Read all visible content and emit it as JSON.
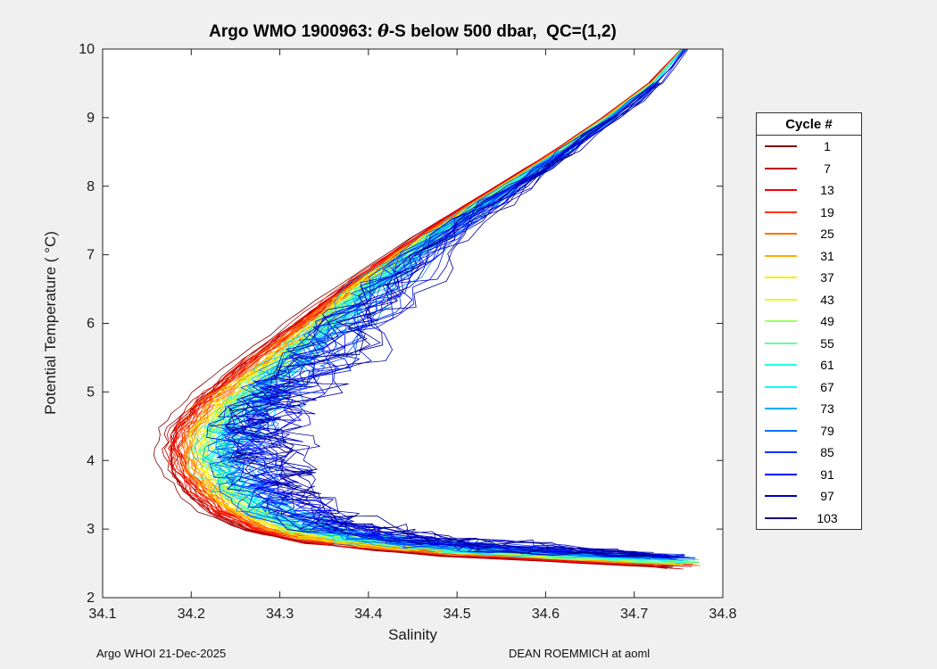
{
  "figure": {
    "background": "#f0f0f0",
    "plot_background": "#ffffff",
    "axes_color": "#222222",
    "footer_left": "Argo WHOI 21-Dec-2025",
    "footer_right": "DEAN ROEMMICH at aoml"
  },
  "chart_data": {
    "type": "line",
    "title": {
      "prefix": "Argo WMO 1900963: ",
      "theta": "θ",
      "suffix": "-S below 500 dbar,  QC=(1,2)"
    },
    "xlabel": "Salinity",
    "ylabel": "Potential Temperature ( °C)",
    "xlim": [
      34.1,
      34.8
    ],
    "ylim": [
      2,
      10
    ],
    "xticks": [
      34.1,
      34.2,
      34.3,
      34.4,
      34.5,
      34.6,
      34.7,
      34.8
    ],
    "yticks": [
      2,
      3,
      4,
      5,
      6,
      7,
      8,
      9,
      10
    ],
    "grid": false,
    "colormap": "jet-reversed",
    "legend": {
      "title": "Cycle #",
      "position": "right-outside",
      "entries": [
        {
          "cycle": 1,
          "color": "#800000"
        },
        {
          "cycle": 7,
          "color": "#BC0000"
        },
        {
          "cycle": 13,
          "color": "#F80000"
        },
        {
          "cycle": 19,
          "color": "#FF3500"
        },
        {
          "cycle": 25,
          "color": "#FF7100"
        },
        {
          "cycle": 31,
          "color": "#FFAD00"
        },
        {
          "cycle": 37,
          "color": "#FFE900"
        },
        {
          "cycle": 43,
          "color": "#DAFF26"
        },
        {
          "cycle": 49,
          "color": "#9DFF62"
        },
        {
          "cycle": 55,
          "color": "#62FF9D"
        },
        {
          "cycle": 61,
          "color": "#26FFDA"
        },
        {
          "cycle": 67,
          "color": "#00FFFF"
        },
        {
          "cycle": 73,
          "color": "#00ADFF"
        },
        {
          "cycle": 79,
          "color": "#0071FF"
        },
        {
          "cycle": 85,
          "color": "#0035FF"
        },
        {
          "cycle": 91,
          "color": "#0000FF"
        },
        {
          "cycle": 97,
          "color": "#0000BC"
        },
        {
          "cycle": 103,
          "color": "#000080"
        }
      ]
    },
    "profiles": {
      "count": 103,
      "cycle_range": [
        1,
        103
      ],
      "base_curve": {
        "salinity": [
          34.755,
          34.72,
          34.67,
          34.615,
          34.555,
          34.495,
          34.44,
          34.39,
          34.345,
          34.3,
          34.265,
          34.24,
          34.222,
          34.215,
          34.22,
          34.235,
          34.26,
          34.3,
          34.36,
          34.43,
          34.5,
          34.57,
          34.64,
          34.7,
          34.745
        ],
        "theta": [
          10.0,
          9.5,
          9.0,
          8.5,
          8.0,
          7.5,
          7.0,
          6.5,
          6.0,
          5.5,
          5.1,
          4.8,
          4.5,
          4.2,
          3.9,
          3.6,
          3.3,
          3.05,
          2.88,
          2.78,
          2.7,
          2.65,
          2.6,
          2.56,
          2.53
        ]
      },
      "cycle_spread": {
        "salinity_shift_first_cycle": -0.046,
        "salinity_shift_last_cycle": 0.069,
        "theta_bottom_offset_first": -0.085,
        "theta_bottom_offset_last": 0.085,
        "noise_first": 0.005,
        "noise_last": 0.047
      }
    }
  }
}
